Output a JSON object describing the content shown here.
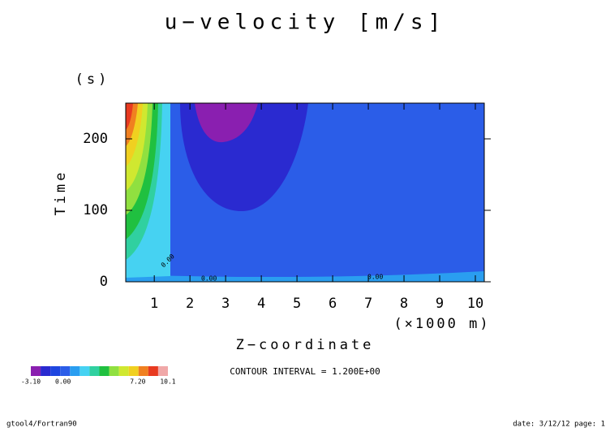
{
  "chart_data": {
    "type": "contour",
    "title": "u−velocity [m/s]",
    "x_label": "Z−coordinate",
    "x_unit": "(×1000 m)",
    "y_label": "Time",
    "y_unit": "(s)",
    "xlim": [
      0.2,
      10.25
    ],
    "ylim": [
      0,
      250
    ],
    "xticks": [
      1,
      2,
      3,
      4,
      5,
      6,
      7,
      8,
      9,
      10
    ],
    "yticks": [
      0,
      100,
      200
    ],
    "contour_labels": [
      "0.00",
      "0.00",
      "0.00"
    ],
    "contour_interval": "CONTOUR INTERVAL = 1.200E+00",
    "colorbar": {
      "lim": [
        -3.1,
        10.1
      ],
      "ticks": [
        {
          "value": -3.1,
          "label": "-3.10"
        },
        {
          "value": 0,
          "label": "0.00"
        },
        {
          "value": 7.2,
          "label": "7.20"
        },
        {
          "value": 10.1,
          "label": "10.1"
        }
      ],
      "colors": [
        "#8a1fb0",
        "#2a2ad0",
        "#1e46e0",
        "#2b5de8",
        "#2a9ef0",
        "#46d2f2",
        "#30d0a0",
        "#20c040",
        "#90e040",
        "#d0e830",
        "#f0d020",
        "#f08020",
        "#e83a20",
        "#f0a8a8"
      ]
    }
  },
  "footer": {
    "left": "gtool4/Fortran90",
    "right": "date: 3/12/12 page: 1"
  }
}
